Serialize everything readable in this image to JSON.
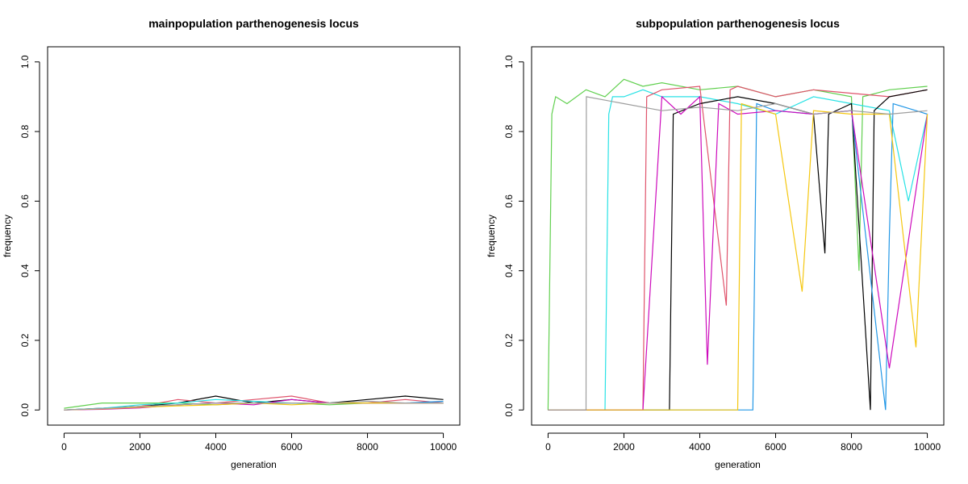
{
  "chart_data": [
    {
      "type": "line",
      "title": "mainpopulation parthenogenesis locus",
      "xlabel": "generation",
      "ylabel": "frequency",
      "xlim": [
        0,
        10000
      ],
      "ylim": [
        0,
        1
      ],
      "xticks": [
        0,
        2000,
        4000,
        6000,
        8000,
        10000
      ],
      "yticks": [
        0.0,
        0.2,
        0.4,
        0.6,
        0.8,
        1.0
      ],
      "xtick_labels": [
        "0",
        "2000",
        "4000",
        "6000",
        "8000",
        "10000"
      ],
      "ytick_labels": [
        "0.0",
        "0.2",
        "0.4",
        "0.6",
        "0.8",
        "1.0"
      ],
      "grid": false,
      "legend": "none",
      "series": [
        {
          "color": "#000000",
          "x": [
            0,
            1000,
            2000,
            3000,
            4000,
            5000,
            6000,
            7000,
            8000,
            9000,
            10000
          ],
          "y": [
            0.0,
            0.005,
            0.01,
            0.02,
            0.04,
            0.02,
            0.03,
            0.02,
            0.03,
            0.04,
            0.03
          ]
        },
        {
          "color": "#df536b",
          "x": [
            0,
            1000,
            2000,
            3000,
            4000,
            5000,
            6000,
            7000,
            8000,
            9000,
            10000
          ],
          "y": [
            0.0,
            0.004,
            0.01,
            0.03,
            0.02,
            0.03,
            0.04,
            0.02,
            0.02,
            0.03,
            0.02
          ]
        },
        {
          "color": "#61d04f",
          "x": [
            0,
            1000,
            2000,
            3000,
            4000,
            5000,
            6000,
            7000,
            8000,
            9000,
            10000
          ],
          "y": [
            0.005,
            0.02,
            0.02,
            0.02,
            0.015,
            0.02,
            0.02,
            0.015,
            0.02,
            0.02,
            0.02
          ]
        },
        {
          "color": "#2297e6",
          "x": [
            0,
            1000,
            2000,
            3000,
            4000,
            5000,
            6000,
            7000,
            8000,
            9000,
            10000
          ],
          "y": [
            0.0,
            0.003,
            0.008,
            0.015,
            0.02,
            0.02,
            0.02,
            0.02,
            0.02,
            0.02,
            0.025
          ]
        },
        {
          "color": "#28e2e5",
          "x": [
            0,
            1000,
            2000,
            3000,
            4000,
            5000,
            6000,
            7000,
            8000,
            9000,
            10000
          ],
          "y": [
            0.0,
            0.005,
            0.015,
            0.02,
            0.03,
            0.025,
            0.02,
            0.02,
            0.02,
            0.02,
            0.02
          ]
        },
        {
          "color": "#cd0bbc",
          "x": [
            0,
            1000,
            2000,
            3000,
            4000,
            5000,
            6000,
            7000,
            8000,
            9000,
            10000
          ],
          "y": [
            0.0,
            0.002,
            0.006,
            0.015,
            0.02,
            0.015,
            0.03,
            0.02,
            0.02,
            0.02,
            0.02
          ]
        },
        {
          "color": "#f5c710",
          "x": [
            0,
            1000,
            2000,
            3000,
            4000,
            5000,
            6000,
            7000,
            8000,
            9000,
            10000
          ],
          "y": [
            0.0,
            0.003,
            0.008,
            0.012,
            0.015,
            0.02,
            0.015,
            0.02,
            0.02,
            0.02,
            0.02
          ]
        },
        {
          "color": "#9e9e9e",
          "x": [
            0,
            1000,
            2000,
            3000,
            4000,
            5000,
            6000,
            7000,
            8000,
            9000,
            10000
          ],
          "y": [
            0.0,
            0.004,
            0.01,
            0.015,
            0.02,
            0.02,
            0.02,
            0.02,
            0.025,
            0.02,
            0.02
          ]
        }
      ]
    },
    {
      "type": "line",
      "title": "subpopulation parthenogenesis locus",
      "xlabel": "generation",
      "ylabel": "frequency",
      "xlim": [
        0,
        10000
      ],
      "ylim": [
        0,
        1
      ],
      "xticks": [
        0,
        2000,
        4000,
        6000,
        8000,
        10000
      ],
      "yticks": [
        0.0,
        0.2,
        0.4,
        0.6,
        0.8,
        1.0
      ],
      "xtick_labels": [
        "0",
        "2000",
        "4000",
        "6000",
        "8000",
        "10000"
      ],
      "ytick_labels": [
        "0.0",
        "0.2",
        "0.4",
        "0.6",
        "0.8",
        "1.0"
      ],
      "grid": false,
      "legend": "none",
      "series": [
        {
          "color": "#61d04f",
          "x": [
            0,
            100,
            200,
            500,
            1000,
            1500,
            2000,
            2500,
            3000,
            4000,
            5000,
            6000,
            7000,
            8000,
            8200,
            8300,
            9000,
            10000
          ],
          "y": [
            0.0,
            0.85,
            0.9,
            0.88,
            0.92,
            0.9,
            0.95,
            0.93,
            0.94,
            0.92,
            0.93,
            0.9,
            0.92,
            0.9,
            0.4,
            0.9,
            0.92,
            0.93
          ]
        },
        {
          "color": "#28e2e5",
          "x": [
            0,
            1000,
            1500,
            1600,
            1700,
            2000,
            2500,
            3000,
            4000,
            5000,
            6000,
            7000,
            8000,
            9000,
            9500,
            10000
          ],
          "y": [
            0.0,
            0.0,
            0.0,
            0.85,
            0.9,
            0.9,
            0.92,
            0.9,
            0.9,
            0.88,
            0.85,
            0.9,
            0.88,
            0.86,
            0.6,
            0.85
          ]
        },
        {
          "color": "#df536b",
          "x": [
            0,
            2500,
            2600,
            3000,
            4000,
            4700,
            4800,
            5000,
            6000,
            7000,
            8000,
            9000,
            10000
          ],
          "y": [
            0.0,
            0.0,
            0.9,
            0.92,
            0.93,
            0.3,
            0.92,
            0.93,
            0.9,
            0.92,
            0.91,
            0.9,
            0.92
          ]
        },
        {
          "color": "#000000",
          "x": [
            0,
            3200,
            3300,
            4000,
            5000,
            6000,
            7000,
            7300,
            7400,
            8000,
            8500,
            8600,
            9000,
            10000
          ],
          "y": [
            0.0,
            0.0,
            0.85,
            0.88,
            0.9,
            0.88,
            0.85,
            0.45,
            0.85,
            0.88,
            0.0,
            0.86,
            0.9,
            0.92
          ]
        },
        {
          "color": "#2297e6",
          "x": [
            0,
            5400,
            5500,
            6000,
            7000,
            8000,
            8900,
            9000,
            9100,
            10000
          ],
          "y": [
            0.0,
            0.0,
            0.88,
            0.86,
            0.85,
            0.86,
            0.0,
            0.5,
            0.88,
            0.85
          ]
        },
        {
          "color": "#cd0bbc",
          "x": [
            0,
            2500,
            3000,
            3500,
            4000,
            4200,
            4500,
            5000,
            6000,
            7000,
            8000,
            9000,
            10000
          ],
          "y": [
            0.0,
            0.0,
            0.9,
            0.85,
            0.9,
            0.13,
            0.88,
            0.85,
            0.86,
            0.85,
            0.86,
            0.12,
            0.85
          ]
        },
        {
          "color": "#f5c710",
          "x": [
            0,
            4000,
            5000,
            5100,
            6000,
            6700,
            7000,
            8000,
            9000,
            9700,
            10000
          ],
          "y": [
            0.0,
            0.0,
            0.0,
            0.88,
            0.85,
            0.34,
            0.86,
            0.85,
            0.85,
            0.18,
            0.85
          ]
        },
        {
          "color": "#9e9e9e",
          "x": [
            0,
            1000,
            1010,
            2000,
            3000,
            4000,
            5000,
            6000,
            7000,
            8000,
            9000,
            10000
          ],
          "y": [
            0.0,
            0.0,
            0.9,
            0.88,
            0.86,
            0.87,
            0.86,
            0.88,
            0.85,
            0.86,
            0.85,
            0.86
          ]
        }
      ]
    }
  ]
}
